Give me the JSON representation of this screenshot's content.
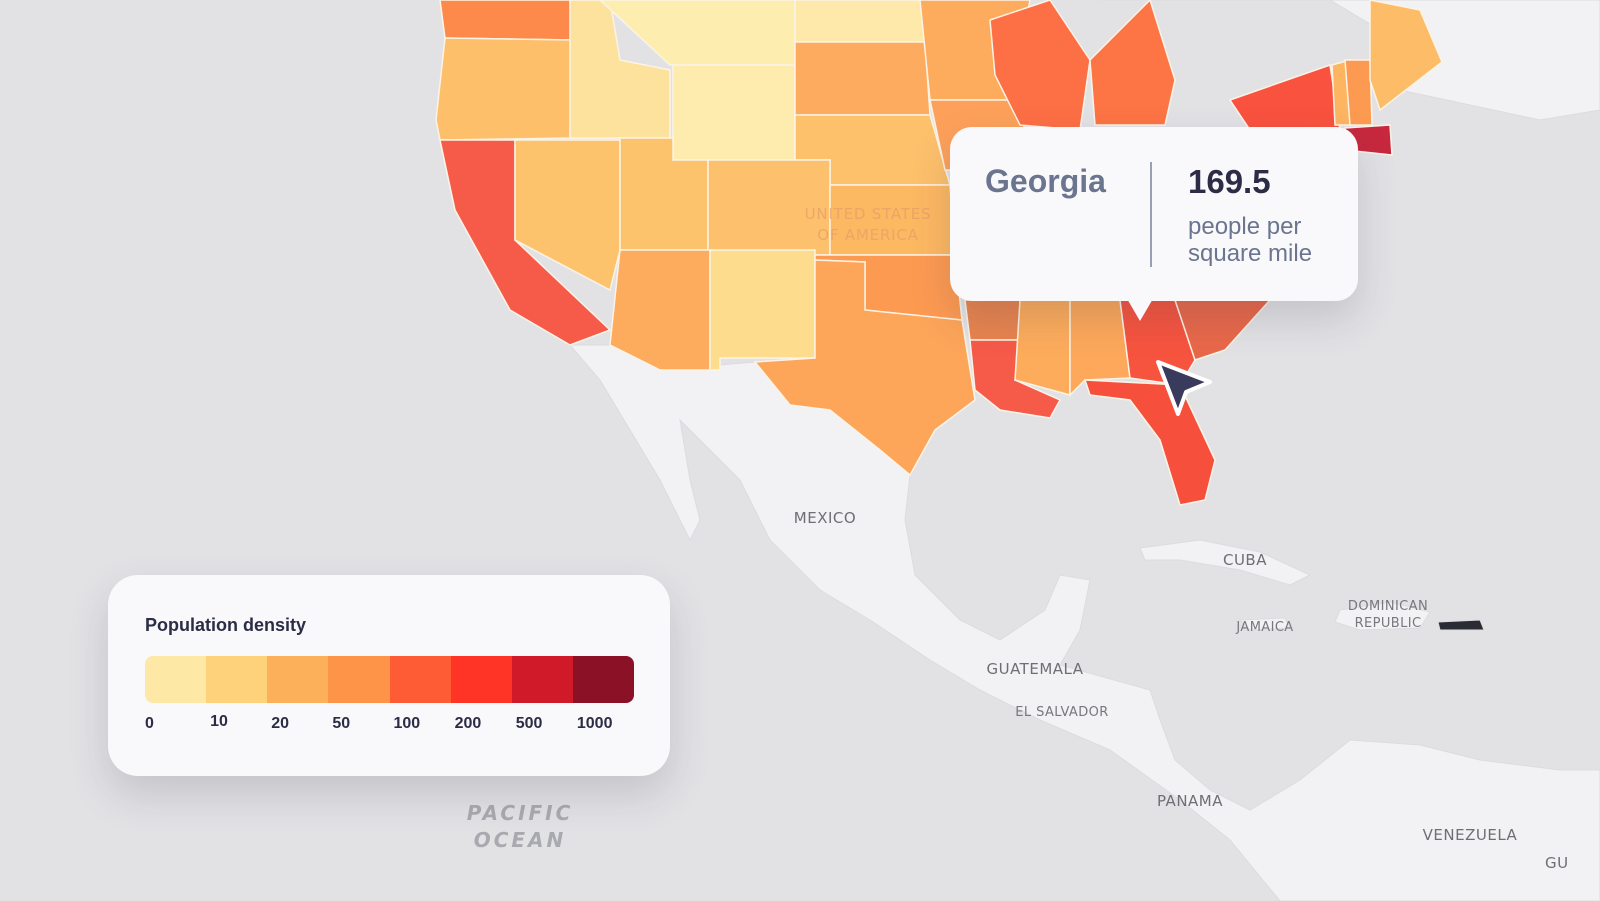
{
  "map": {
    "country_label": [
      "UNITED STATES",
      "OF AMERICA"
    ],
    "places": {
      "mexico": "MEXICO",
      "cuba": "CUBA",
      "jamaica": "JAMAICA",
      "dominican_republic": [
        "DOMINICAN",
        "REPUBLIC"
      ],
      "guatemala": "GUATEMALA",
      "el_salvador": "EL SALVADOR",
      "panama": "PANAMA",
      "venezuela": "VENEZUELA",
      "guyana": "GU"
    },
    "ocean": [
      "PACIFIC",
      "OCEAN"
    ]
  },
  "tooltip": {
    "state": "Georgia",
    "value": 169.5,
    "unit": [
      "people per",
      "square mile"
    ]
  },
  "legend": {
    "title": "Population density",
    "ticks": [
      0,
      10,
      20,
      50,
      100,
      200,
      500,
      1000
    ],
    "colors": [
      "#fde8a6",
      "#fdd27a",
      "#fdb05a",
      "#fd9447",
      "#fd5c35",
      "#ff3426",
      "#d01a2a",
      "#8b1126"
    ]
  }
}
